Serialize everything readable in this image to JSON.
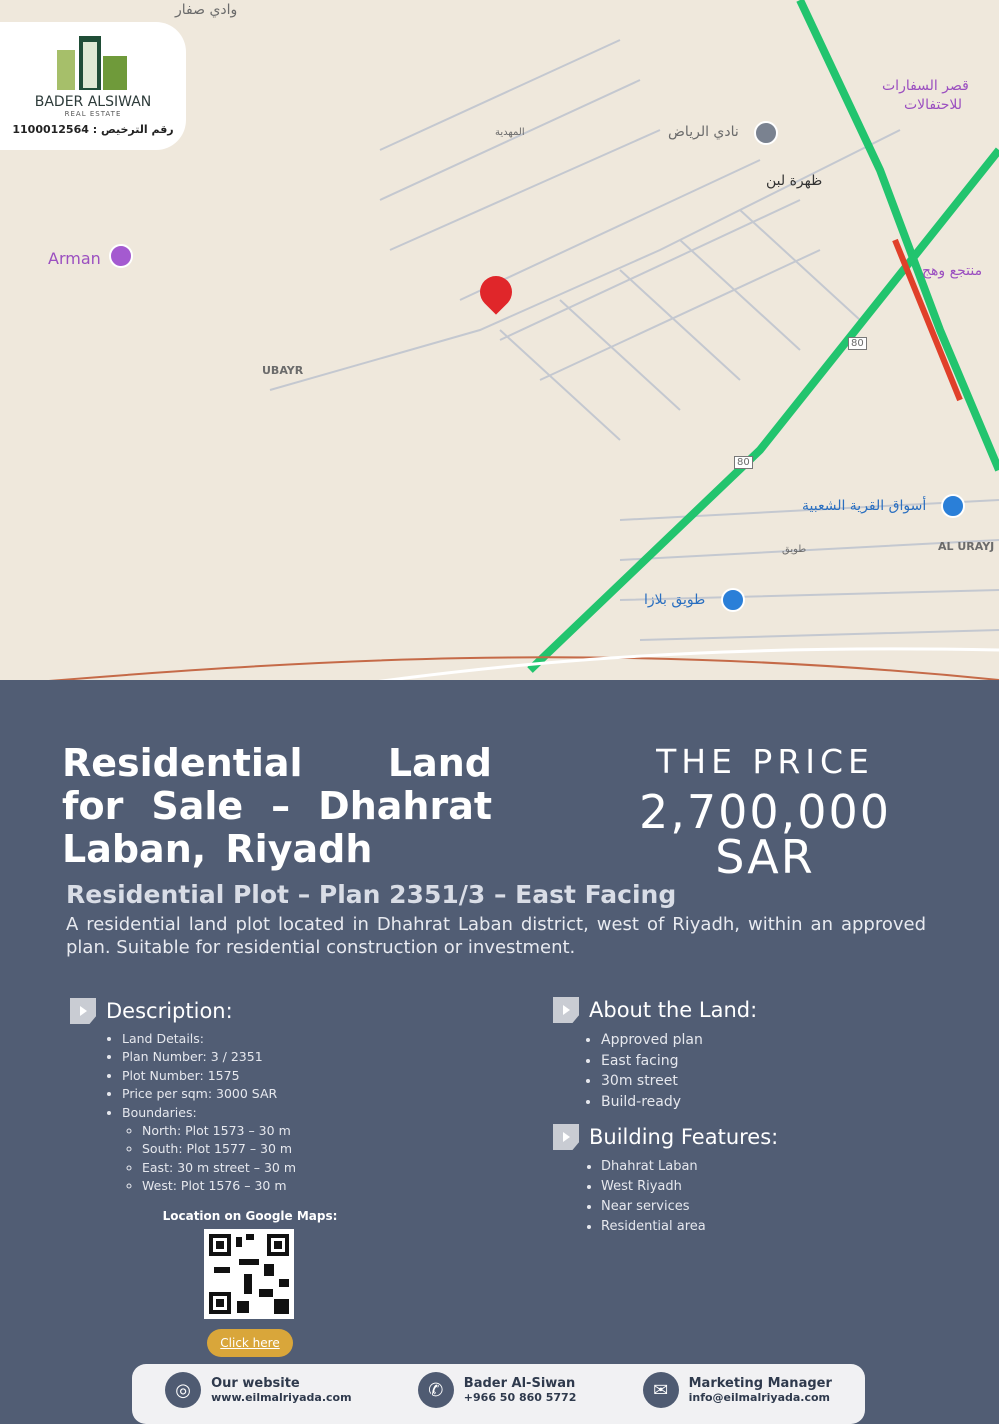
{
  "logo": {
    "brand": "BADER ALSIWAN",
    "tagline": "REAL ESTATE",
    "license": "رقم الترخيص : 1100012564"
  },
  "map": {
    "labels": [
      "وادي صفار",
      "المهدية",
      "نادي الرياض",
      "قصر السفارات",
      "للاحتفالات",
      "ظهرة لبن",
      "منتجع وهج",
      "Arman",
      "UBAYR",
      "80",
      "80",
      "أسواق القرية الشعبية",
      "AL URAYJ",
      "طويق",
      "طويق بلازا"
    ]
  },
  "listing": {
    "title": "Residential Land for Sale – Dhahrat Laban, Riyadh",
    "price_label": "THE PRICE",
    "price_value": "2,700,000",
    "price_currency": "SAR",
    "subtitle": "Residential Plot – Plan 2351/3 – East Facing",
    "intro": "A residential land plot located in Dhahrat Laban district, west of Riyadh, within an approved plan. Suitable for residential construction or investment."
  },
  "description": {
    "heading": "Description:",
    "items": [
      "Land Details:",
      "Plan Number: 3 / 2351",
      "Plot Number: 1575",
      "Price per sqm: 3000 SAR",
      "Boundaries:"
    ],
    "boundaries": [
      "North: Plot 1573 – 30 m",
      "South: Plot 1577 – 30 m",
      "East: 30 m street – 30 m",
      "West: Plot 1576 – 30 m"
    ]
  },
  "about": {
    "heading": "About the Land:",
    "items": [
      "Approved plan",
      "East facing",
      "30m street",
      "Build-ready"
    ]
  },
  "features": {
    "heading": "Building Features:",
    "items": [
      "Dhahrat Laban",
      "West Riyadh",
      "Near services",
      "Residential area"
    ]
  },
  "location": {
    "label": "Location on Google Maps:",
    "button": "Click here"
  },
  "contact": [
    {
      "title": "Our website",
      "value": "www.eilmalriyada.com",
      "icon": "globe-icon"
    },
    {
      "title": "Bader Al-Siwan",
      "value": "+966 50 860 5772",
      "icon": "phone-icon"
    },
    {
      "title": "Marketing Manager",
      "value": "info@eilmalriyada.com",
      "icon": "mail-icon"
    }
  ],
  "colors": {
    "panel": "#515d74",
    "road": "#22c46e",
    "accent": "#d9a63a",
    "pin": "#e0262a"
  }
}
